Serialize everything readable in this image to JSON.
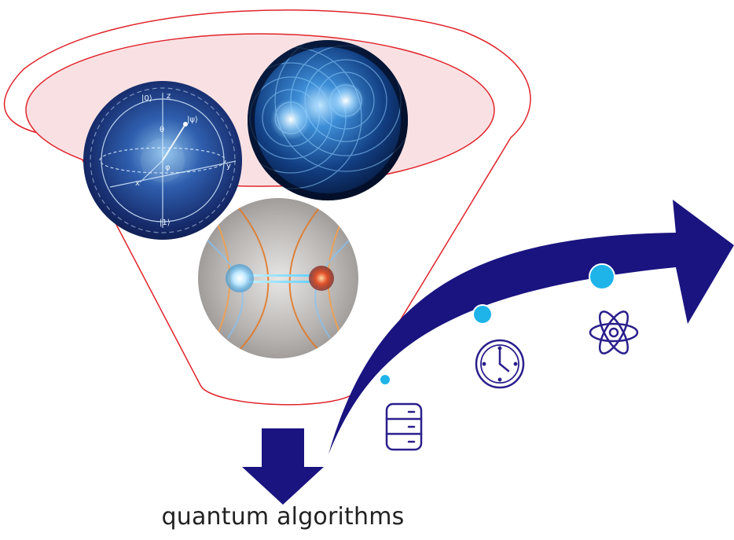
{
  "caption": "quantum algorithms",
  "colors": {
    "funnel_outline": "#e0242b",
    "funnel_fill": "#f9e1e3",
    "arrow": "#1a1480",
    "marker_fill": "#1eb4ea",
    "icon_stroke": "#2a1f8c"
  },
  "images": [
    {
      "name": "bloch-sphere-image",
      "description_icon": "bloch-sphere"
    },
    {
      "name": "wave-interference-image",
      "description_icon": "interference-sphere"
    },
    {
      "name": "entanglement-image",
      "description_icon": "entangled-particles"
    }
  ],
  "milestones": [
    {
      "name": "database-icon"
    },
    {
      "name": "clock-icon"
    },
    {
      "name": "atom-icon"
    }
  ],
  "bloch_labels": {
    "zero": "|0⟩",
    "one": "|1⟩",
    "psi": "|ψ⟩",
    "z": "z",
    "y": "y",
    "x": "x",
    "theta": "θ",
    "phi": "φ"
  }
}
